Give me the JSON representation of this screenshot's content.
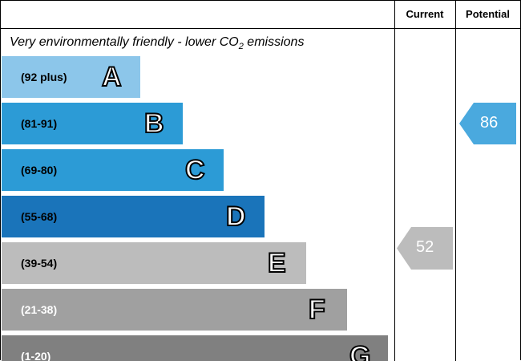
{
  "header": {
    "current": "Current",
    "potential": "Potential"
  },
  "title": {
    "text": "Very environmentally friendly - lower CO",
    "subscript": "2",
    "end": " emissions"
  },
  "bands": [
    {
      "range": "(92 plus)",
      "letter": "A",
      "color": "#8cc6ea",
      "text_color": "#000000"
    },
    {
      "range": "(81-91)",
      "letter": "B",
      "color": "#2c9bd6",
      "text_color": "#000000"
    },
    {
      "range": "(69-80)",
      "letter": "C",
      "color": "#2c9bd6",
      "text_color": "#000000"
    },
    {
      "range": "(55-68)",
      "letter": "D",
      "color": "#1a74ba",
      "text_color": "#000000"
    },
    {
      "range": "(39-54)",
      "letter": "E",
      "color": "#bcbcbc",
      "text_color": "#000000"
    },
    {
      "range": "(21-38)",
      "letter": "F",
      "color": "#a0a0a0",
      "text_color": "#ffffff"
    },
    {
      "range": "(1-20)",
      "letter": "G",
      "color": "#808080",
      "text_color": "#ffffff"
    }
  ],
  "current": {
    "value": 52,
    "color": "#bcbcbc"
  },
  "potential": {
    "value": 86,
    "color": "#4aa9de"
  }
}
